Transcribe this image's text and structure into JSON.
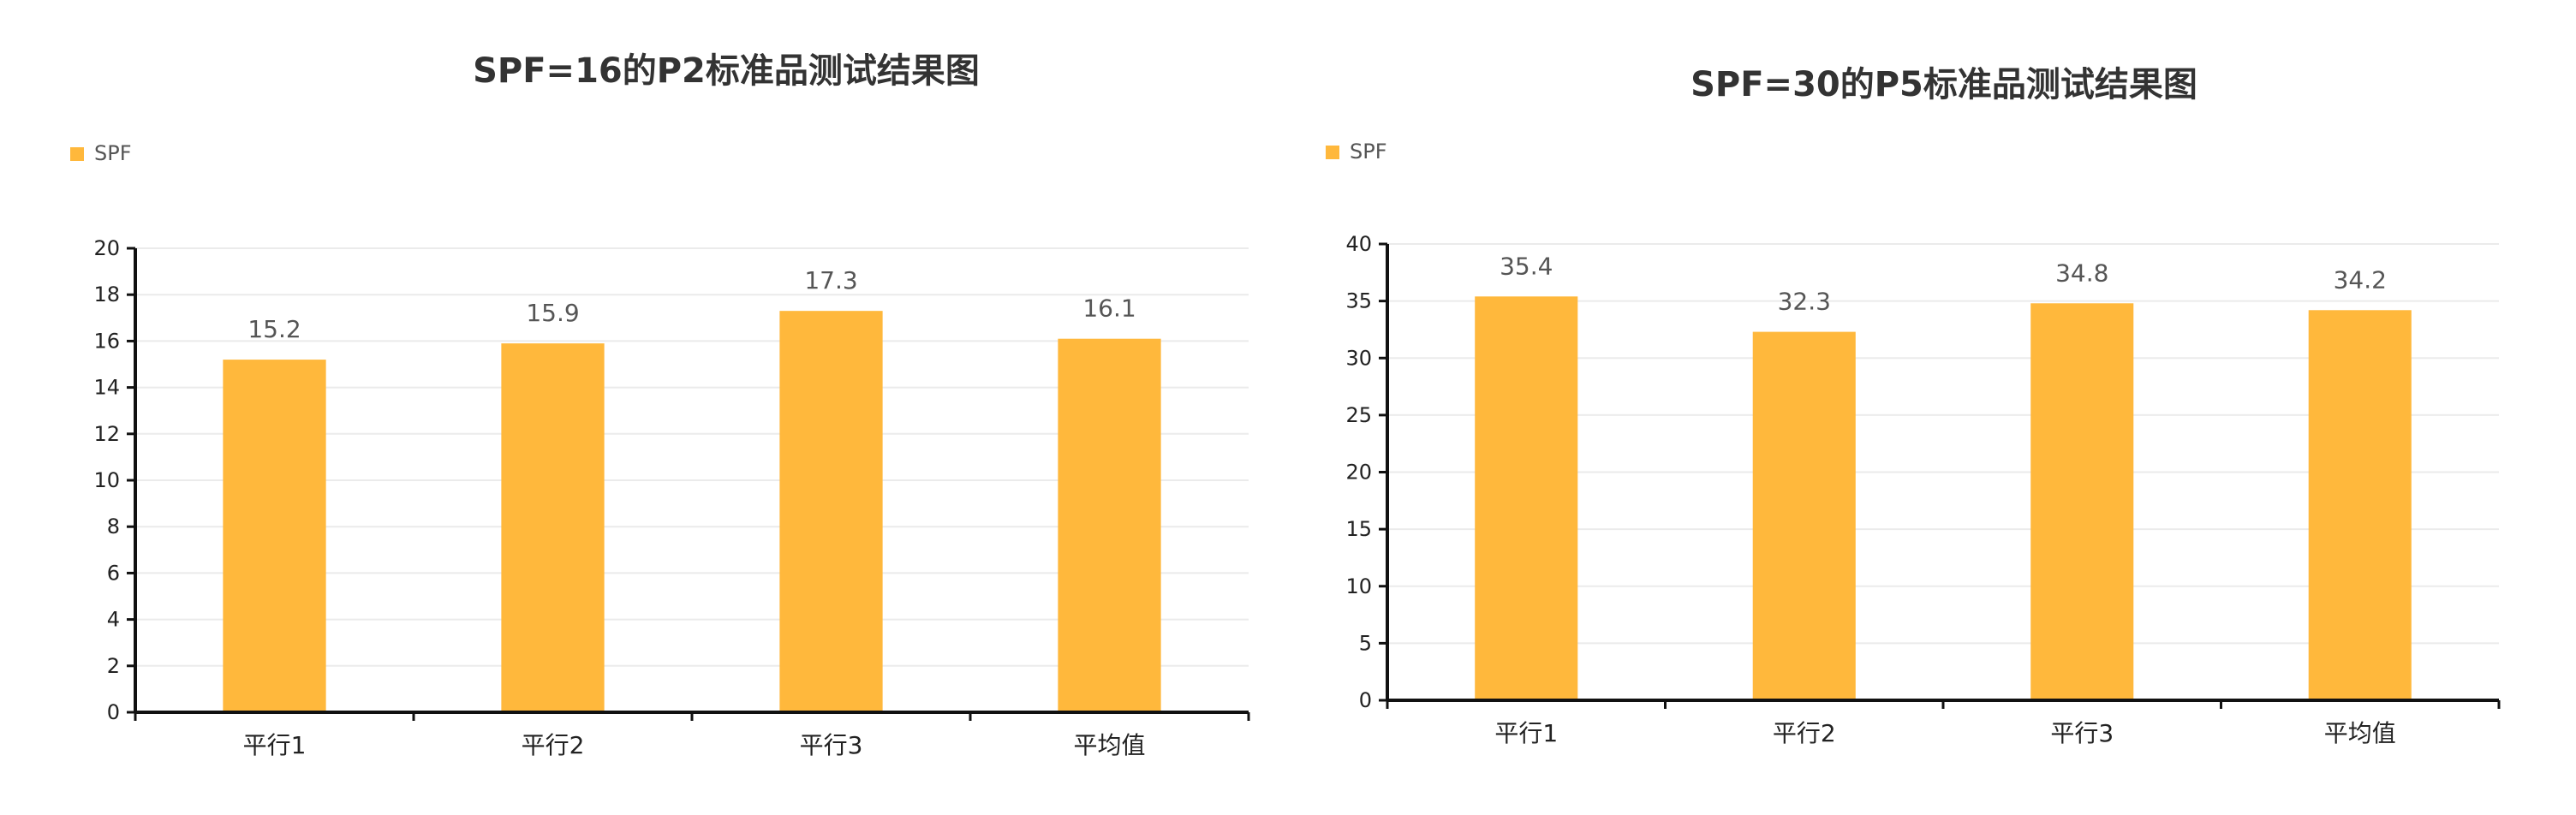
{
  "chart_data": [
    {
      "type": "bar",
      "title": "SPF=16的P2标准品测试结果图",
      "legend": {
        "position": "top-left",
        "entries": [
          "SPF"
        ]
      },
      "categories": [
        "平行1",
        "平行2",
        "平行3",
        "平均值"
      ],
      "series": [
        {
          "name": "SPF",
          "values": [
            15.2,
            15.9,
            17.3,
            16.1
          ],
          "color": "#FFB83C"
        }
      ],
      "y_ticks": [
        0,
        2,
        4,
        6,
        8,
        10,
        12,
        14,
        16,
        18,
        20
      ],
      "ylim": [
        0,
        20
      ],
      "grid": true,
      "xlabel": "",
      "ylabel": ""
    },
    {
      "type": "bar",
      "title": "SPF=30的P5标准品测试结果图",
      "legend": {
        "position": "top-left",
        "entries": [
          "SPF"
        ]
      },
      "categories": [
        "平行1",
        "平行2",
        "平行3",
        "平均值"
      ],
      "series": [
        {
          "name": "SPF",
          "values": [
            35.4,
            32.3,
            34.8,
            34.2
          ],
          "color": "#FFB83C"
        }
      ],
      "y_ticks": [
        0,
        5,
        10,
        15,
        20,
        25,
        30,
        35,
        40
      ],
      "ylim": [
        0,
        40
      ],
      "grid": true,
      "xlabel": "",
      "ylabel": ""
    }
  ]
}
